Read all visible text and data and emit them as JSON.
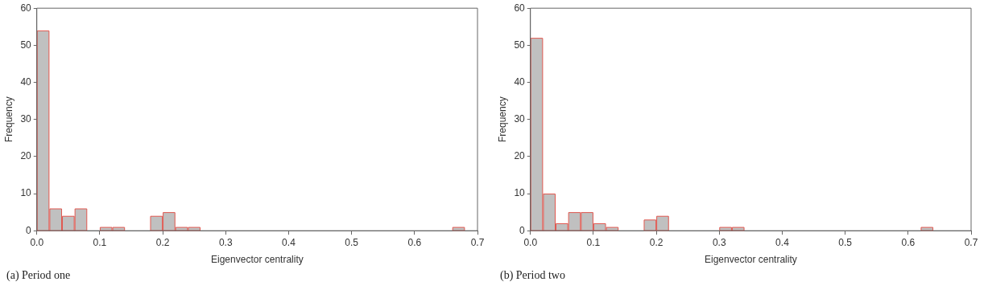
{
  "chart_data": [
    {
      "type": "histogram",
      "xlabel": "Eigenvector centrality",
      "ylabel": "Frequency",
      "bins": [
        0,
        0.02,
        0.04,
        0.06,
        0.08,
        0.1,
        0.12,
        0.14,
        0.16,
        0.18,
        0.2,
        0.22,
        0.24,
        0.26,
        0.28,
        0.3,
        0.32,
        0.34,
        0.36,
        0.38,
        0.4,
        0.42,
        0.44,
        0.46,
        0.48,
        0.5,
        0.52,
        0.54,
        0.56,
        0.58,
        0.6,
        0.62,
        0.64,
        0.66,
        0.68,
        0.7
      ],
      "values": [
        54,
        6,
        4,
        6,
        0,
        1,
        1,
        0,
        0,
        4,
        5,
        1,
        1,
        0,
        0,
        0,
        0,
        0,
        0,
        0,
        0,
        0,
        0,
        0,
        0,
        0,
        0,
        0,
        0,
        0,
        0,
        0,
        0,
        1,
        0
      ],
      "color": "#c0c0c0",
      "xlim": [
        0,
        0.7
      ],
      "xticks": [
        {
          "value": 0,
          "label": "0.0"
        },
        0.1,
        0.2,
        0.3,
        0.4,
        0.5,
        0.6,
        0.7
      ],
      "ylim": [
        0,
        60
      ],
      "yticks": [
        0,
        10,
        20,
        30,
        40,
        50,
        60
      ],
      "grid": false,
      "legend": false,
      "annotations": [
        "(a) Period one"
      ]
    },
    {
      "type": "histogram",
      "xlabel": "Eigenvector centrality",
      "ylabel": "Frequency",
      "bins": [
        0,
        0.02,
        0.04,
        0.06,
        0.08,
        0.1,
        0.12,
        0.14,
        0.16,
        0.18,
        0.2,
        0.22,
        0.24,
        0.26,
        0.28,
        0.3,
        0.32,
        0.34,
        0.36,
        0.38,
        0.4,
        0.42,
        0.44,
        0.46,
        0.48,
        0.5,
        0.52,
        0.54,
        0.56,
        0.58,
        0.6,
        0.62,
        0.64,
        0.66,
        0.68,
        0.7
      ],
      "values": [
        52,
        10,
        2,
        5,
        5,
        2,
        1,
        0,
        0,
        3,
        4,
        0,
        0,
        0,
        0,
        1,
        1,
        0,
        0,
        0,
        0,
        0,
        0,
        0,
        0,
        0,
        0,
        0,
        0,
        0,
        0,
        1,
        0,
        0,
        0
      ],
      "color": "#c0c0c0",
      "xlim": [
        0,
        0.7
      ],
      "xticks": [
        {
          "value": 0,
          "label": "0.0"
        },
        0.1,
        0.2,
        0.3,
        0.4,
        0.5,
        0.6,
        0.7
      ],
      "ylim": [
        0,
        60
      ],
      "yticks": [
        0,
        10,
        20,
        30,
        40,
        50,
        60
      ],
      "grid": false,
      "legend": false,
      "annotations": [
        "(b) Period two"
      ]
    }
  ]
}
